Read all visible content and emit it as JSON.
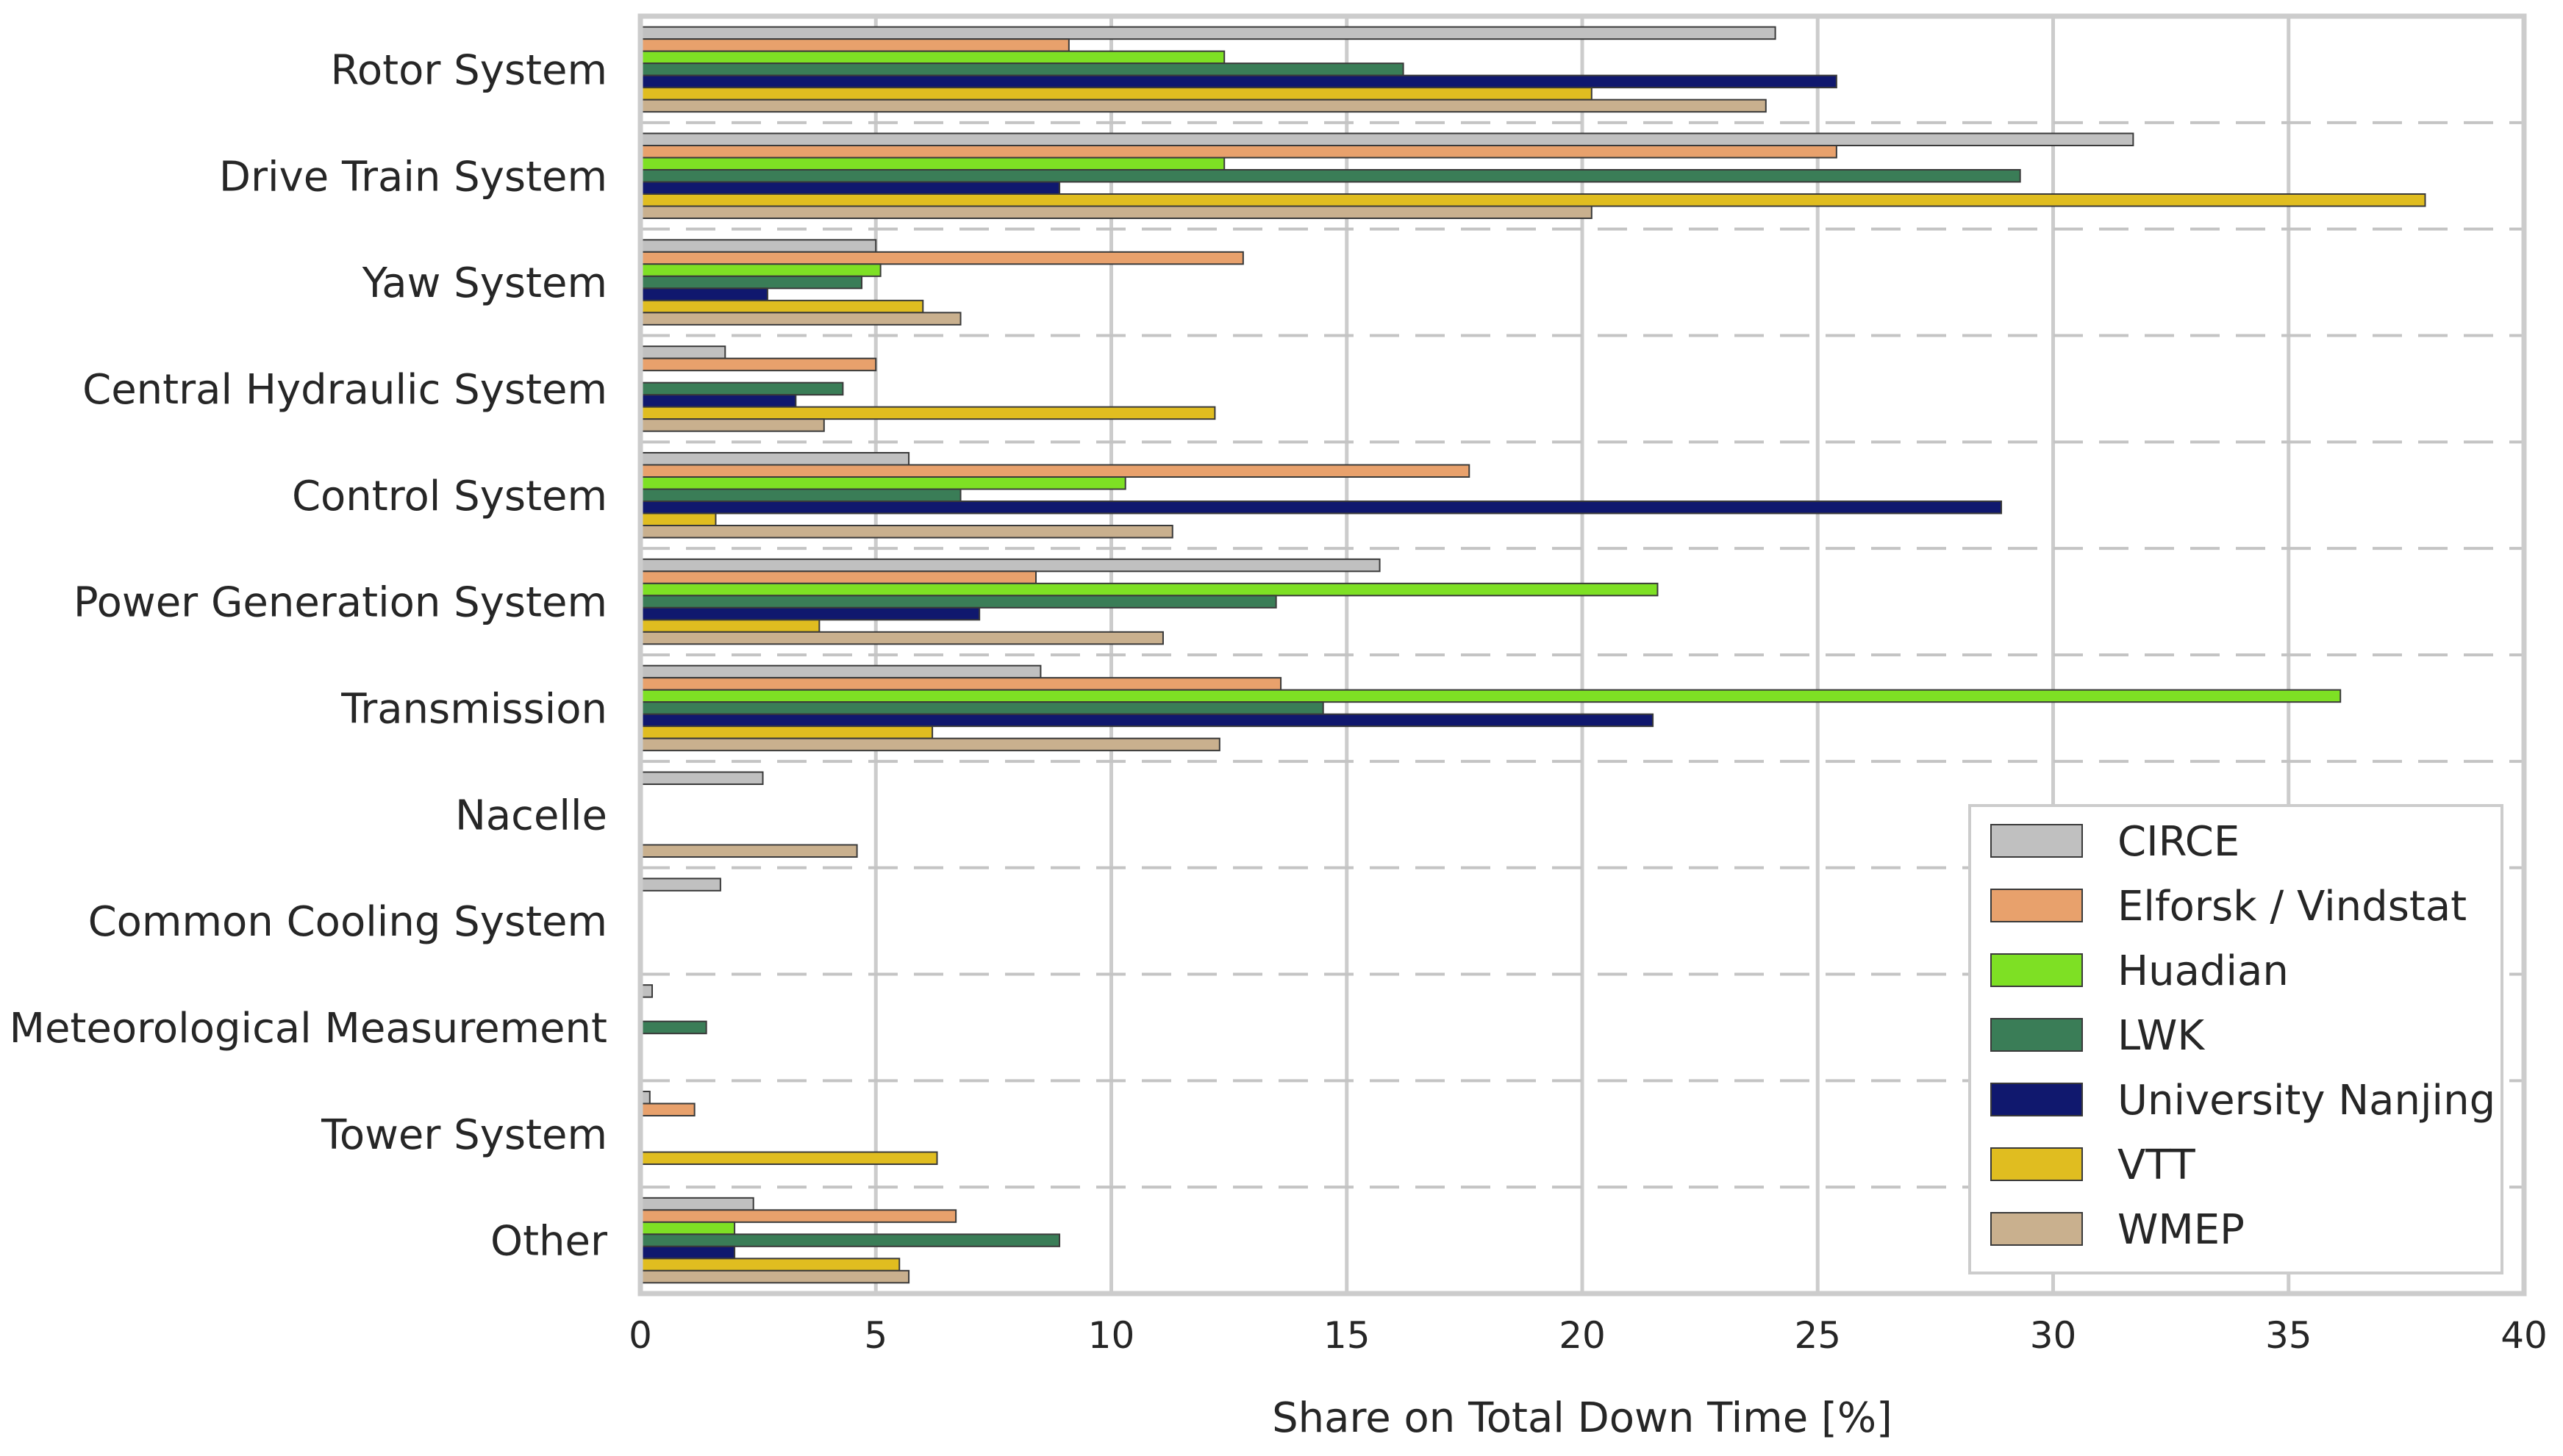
{
  "chart_data": {
    "type": "bar",
    "orientation": "horizontal",
    "title": "",
    "xlabel": "Share on Total Down Time [%]",
    "ylabel": "",
    "xlim": [
      0,
      40
    ],
    "xticks": [
      0,
      5,
      10,
      15,
      20,
      25,
      30,
      35,
      40
    ],
    "xtick_labels": [
      "0",
      "5",
      "10",
      "15",
      "20",
      "25",
      "30",
      "35",
      "40"
    ],
    "grid": true,
    "legend_position": "lower-right",
    "categories": [
      "Rotor System",
      "Drive Train System",
      "Yaw System",
      "Central Hydraulic System",
      "Control System",
      "Power Generation System",
      "Transmission",
      "Nacelle",
      "Common Cooling System",
      "Meteorological Measurement",
      "Tower System",
      "Other"
    ],
    "series": [
      {
        "name": "CIRCE",
        "color": "#c0c0c0",
        "values": [
          24.1,
          31.7,
          5.0,
          1.8,
          5.7,
          15.7,
          8.5,
          2.6,
          1.7,
          0.25,
          0.2,
          2.4
        ]
      },
      {
        "name": "Elforsk / Vindstat",
        "color": "#e8a16c",
        "values": [
          9.1,
          25.4,
          12.8,
          5.0,
          17.6,
          8.4,
          13.6,
          0,
          0,
          0,
          1.15,
          6.7
        ]
      },
      {
        "name": "Huadian",
        "color": "#7ee024",
        "values": [
          12.4,
          12.4,
          5.1,
          0,
          10.3,
          21.6,
          36.1,
          0,
          0,
          0,
          0,
          2.0
        ]
      },
      {
        "name": "LWK",
        "color": "#3a7d57",
        "values": [
          16.2,
          29.3,
          4.7,
          4.3,
          6.8,
          13.5,
          14.5,
          0,
          0,
          1.4,
          0,
          8.9
        ]
      },
      {
        "name": "University Nanjing",
        "color": "#10186e",
        "values": [
          25.4,
          8.9,
          2.7,
          3.3,
          28.9,
          7.2,
          21.5,
          0,
          0,
          0,
          0,
          2.0
        ]
      },
      {
        "name": "VTT",
        "color": "#e0bd20",
        "values": [
          20.2,
          37.9,
          6.0,
          12.2,
          1.6,
          3.8,
          6.2,
          0,
          0,
          0,
          6.3,
          5.5
        ]
      },
      {
        "name": "WMEP",
        "color": "#c9b08e",
        "values": [
          23.9,
          20.2,
          6.8,
          3.9,
          11.3,
          11.1,
          12.3,
          4.6,
          0,
          0,
          0,
          5.7
        ]
      }
    ]
  }
}
